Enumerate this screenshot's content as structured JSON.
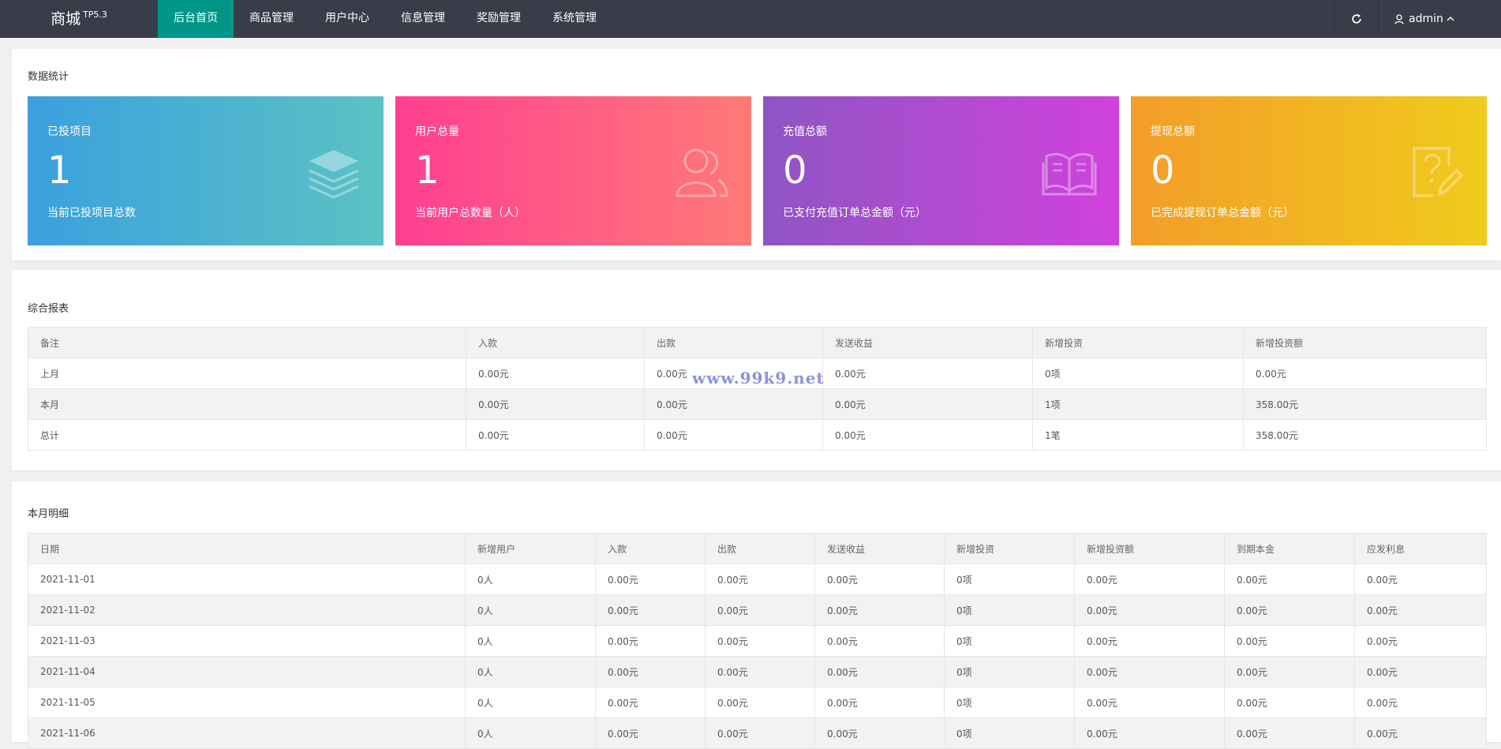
{
  "header": {
    "logo": "商城",
    "logo_version": "TP5.3",
    "menu": [
      {
        "label": "后台首页",
        "active": true
      },
      {
        "label": "商品管理",
        "active": false
      },
      {
        "label": "用户中心",
        "active": false
      },
      {
        "label": "信息管理",
        "active": false
      },
      {
        "label": "奖励管理",
        "active": false
      },
      {
        "label": "系统管理",
        "active": false
      }
    ],
    "user_name": "admin",
    "refresh_icon": "refresh-icon",
    "user_icon": "user-icon"
  },
  "stats": {
    "title": "数据统计",
    "cards": [
      {
        "label": "已投项目",
        "value": "1",
        "desc": "当前已投项目总数",
        "icon": "layers-icon",
        "gradient": [
          "#3ba0de",
          "#5bc2c4"
        ]
      },
      {
        "label": "用户总量",
        "value": "1",
        "desc": "当前用户总数量（人）",
        "icon": "users-icon",
        "gradient": [
          "#ff3e92",
          "#ff7a76"
        ]
      },
      {
        "label": "充值总额",
        "value": "0",
        "desc": "已支付充值订单总金额（元）",
        "icon": "book-icon",
        "gradient": [
          "#8e55c4",
          "#d042dc"
        ]
      },
      {
        "label": "提现总额",
        "value": "0",
        "desc": "已完成提现订单总金额（元）",
        "icon": "question-edit-icon",
        "gradient": [
          "#f39d29",
          "#f0cb1c"
        ]
      }
    ]
  },
  "summary": {
    "title": "综合报表",
    "columns": [
      "备注",
      "入款",
      "出款",
      "发送收益",
      "新增投资",
      "新增投资额"
    ],
    "rows": [
      [
        "上月",
        "0.00元",
        "0.00元",
        "0.00元",
        "0项",
        "0.00元"
      ],
      [
        "本月",
        "0.00元",
        "0.00元",
        "0.00元",
        "1项",
        "358.00元"
      ],
      [
        "总计",
        "0.00元",
        "0.00元",
        "0.00元",
        "1笔",
        "358.00元"
      ]
    ]
  },
  "detail": {
    "title": "本月明细",
    "columns": [
      "日期",
      "新增用户",
      "入款",
      "出款",
      "发送收益",
      "新增投资",
      "新增投资额",
      "到期本金",
      "应发利息"
    ],
    "rows": [
      [
        "2021-11-01",
        "0人",
        "0.00元",
        "0.00元",
        "0.00元",
        "0项",
        "0.00元",
        "0.00元",
        "0.00元"
      ],
      [
        "2021-11-02",
        "0人",
        "0.00元",
        "0.00元",
        "0.00元",
        "0项",
        "0.00元",
        "0.00元",
        "0.00元"
      ],
      [
        "2021-11-03",
        "0人",
        "0.00元",
        "0.00元",
        "0.00元",
        "0项",
        "0.00元",
        "0.00元",
        "0.00元"
      ],
      [
        "2021-11-04",
        "0人",
        "0.00元",
        "0.00元",
        "0.00元",
        "0项",
        "0.00元",
        "0.00元",
        "0.00元"
      ],
      [
        "2021-11-05",
        "0人",
        "0.00元",
        "0.00元",
        "0.00元",
        "0项",
        "0.00元",
        "0.00元",
        "0.00元"
      ],
      [
        "2021-11-06",
        "0人",
        "0.00元",
        "0.00元",
        "0.00元",
        "0项",
        "0.00元",
        "0.00元",
        "0.00元"
      ]
    ]
  },
  "watermark": "www.99k9.net",
  "colors": {
    "topbar": "#393d49",
    "active_menu": "#009688"
  }
}
